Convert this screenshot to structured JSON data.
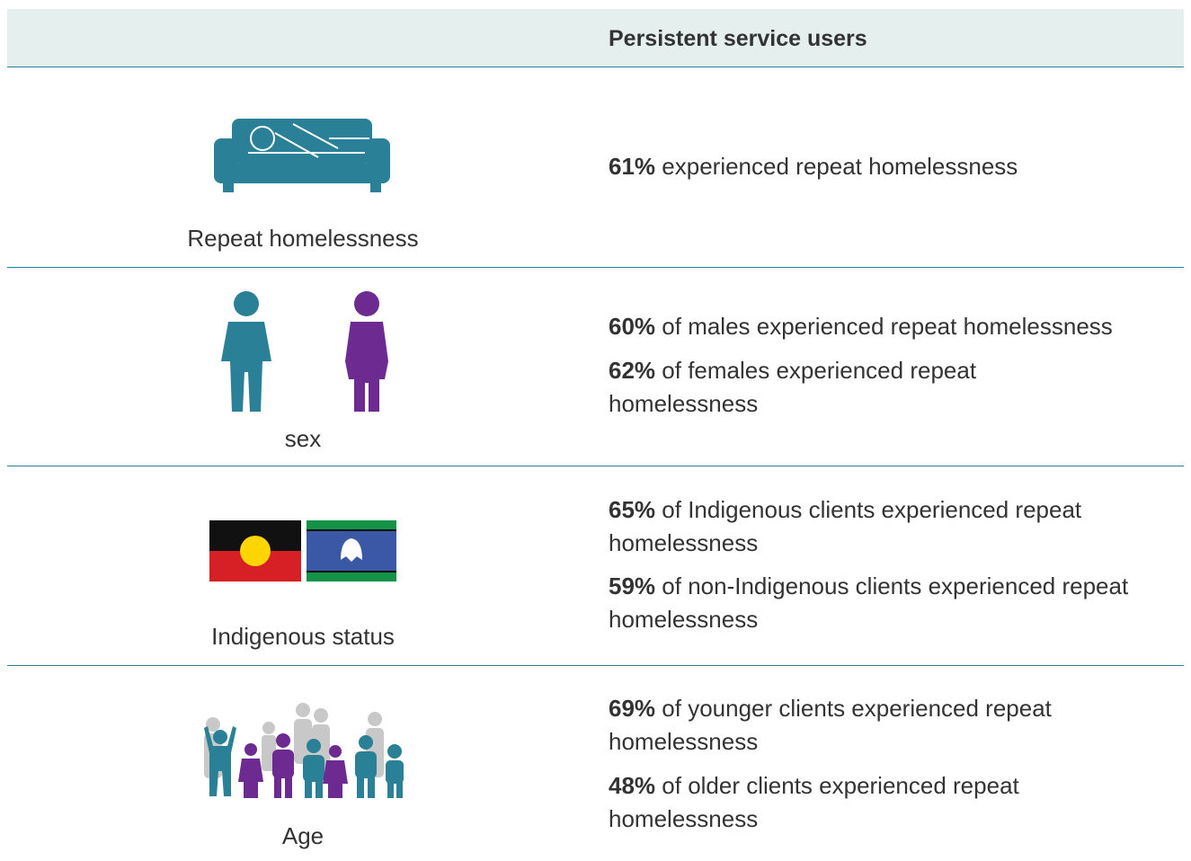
{
  "header": {
    "title": "Persistent service users"
  },
  "rows": [
    {
      "label": "Repeat homelessness",
      "statements": [
        {
          "bold": "61%",
          "text": "experienced repeat homelessness"
        }
      ]
    },
    {
      "label": "sex",
      "statements": [
        {
          "bold": "60%",
          "text": "of males experienced repeat homelessness"
        },
        {
          "bold": "62%",
          "text": "of females experienced repeat homelessness"
        }
      ]
    },
    {
      "label": "Indigenous status",
      "statements": [
        {
          "bold": "65%",
          "text": "of Indigenous clients experienced repeat homelessness"
        },
        {
          "bold": "59%",
          "text": "of non-Indigenous clients experienced repeat homelessness"
        }
      ]
    },
    {
      "label": "Age",
      "statements": [
        {
          "bold": "69%",
          "text": "of younger clients experienced repeat homelessness"
        },
        {
          "bold": "48%",
          "text": "of older clients experienced repeat homelessness"
        }
      ]
    }
  ]
}
